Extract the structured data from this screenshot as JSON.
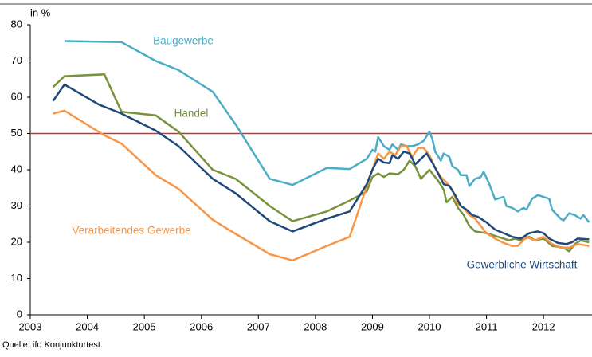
{
  "chart_data": {
    "type": "line",
    "y_label": "in %",
    "source": "Quelle: ifo Konjunkturtest.",
    "xlim": [
      2003,
      2012.85
    ],
    "xticks": [
      2003,
      2004,
      2005,
      2006,
      2007,
      2008,
      2009,
      2010,
      2011,
      2012
    ],
    "ylim": [
      0,
      80
    ],
    "yticks": [
      0,
      10,
      20,
      30,
      40,
      50,
      60,
      70,
      80
    ],
    "reference_line": {
      "value": 50,
      "color": "#e3262b"
    },
    "series": [
      {
        "name": "Baugewerbe",
        "color": "#4bacc6",
        "x": [
          2003.6,
          2004.6,
          2005.2,
          2005.6,
          2006.2,
          2006.6,
          2007.2,
          2007.6,
          2008.2,
          2008.6,
          2008.9,
          2009.0,
          2009.05,
          2009.1,
          2009.2,
          2009.3,
          2009.35,
          2009.45,
          2009.5,
          2009.6,
          2009.7,
          2009.8,
          2009.9,
          2010.0,
          2010.05,
          2010.1,
          2010.2,
          2010.25,
          2010.35,
          2010.4,
          2010.5,
          2010.55,
          2010.65,
          2010.7,
          2010.8,
          2010.9,
          2010.95,
          2011.05,
          2011.15,
          2011.3,
          2011.35,
          2011.45,
          2011.55,
          2011.65,
          2011.7,
          2011.8,
          2011.9,
          2012.0,
          2012.1,
          2012.15,
          2012.3,
          2012.35,
          2012.45,
          2012.55,
          2012.65,
          2012.7,
          2012.8
        ],
        "values": [
          75.5,
          75.2,
          70,
          67.5,
          61.5,
          52.5,
          37.5,
          35.8,
          40.5,
          40.2,
          43,
          45.5,
          45,
          49,
          46.5,
          45.5,
          47,
          45.5,
          47,
          46.5,
          46.5,
          47,
          48,
          50.5,
          48.5,
          45,
          42.5,
          44.5,
          43.5,
          41,
          40,
          38.5,
          38.5,
          35.5,
          37.5,
          38,
          39.5,
          36,
          31.8,
          32.5,
          30,
          29.5,
          28.5,
          29.5,
          29,
          32,
          33,
          32.5,
          32,
          29,
          26.5,
          26,
          28,
          27.5,
          26.5,
          27.5,
          25.5
        ]
      },
      {
        "name": "Handel",
        "color": "#77933c",
        "x": [
          2003.4,
          2003.6,
          2004.3,
          2004.6,
          2005.2,
          2005.6,
          2006.2,
          2006.6,
          2007.2,
          2007.6,
          2008.2,
          2008.6,
          2008.9,
          2009.0,
          2009.1,
          2009.2,
          2009.3,
          2009.45,
          2009.55,
          2009.65,
          2009.75,
          2009.85,
          2010.0,
          2010.15,
          2010.25,
          2010.3,
          2010.4,
          2010.5,
          2010.6,
          2010.7,
          2010.8,
          2011.0,
          2011.2,
          2011.4,
          2011.5,
          2011.6,
          2011.75,
          2011.85,
          2012.0,
          2012.15,
          2012.35,
          2012.45,
          2012.55,
          2012.65,
          2012.8
        ],
        "values": [
          62.8,
          65.8,
          66.3,
          56,
          55,
          50.5,
          40,
          37.5,
          30,
          25.8,
          28.5,
          31.5,
          34,
          38,
          39,
          38,
          39,
          38.8,
          40,
          42.5,
          41,
          37.5,
          40,
          37,
          34.5,
          31,
          32.5,
          29.5,
          27.5,
          24.5,
          23,
          22.5,
          21.5,
          20.5,
          21,
          20.5,
          21.5,
          20.5,
          21,
          19,
          18.5,
          17.5,
          19.5,
          20.5,
          20
        ]
      },
      {
        "name": "Verarbeitendes Gewerbe",
        "color": "#f79646",
        "x": [
          2003.4,
          2003.6,
          2004.3,
          2004.6,
          2005.2,
          2005.6,
          2006.2,
          2006.6,
          2007.2,
          2007.6,
          2008.2,
          2008.6,
          2009.0,
          2009.1,
          2009.2,
          2009.3,
          2009.4,
          2009.5,
          2009.6,
          2009.7,
          2009.8,
          2009.9,
          2010.0,
          2010.1,
          2010.2,
          2010.3,
          2010.4,
          2010.5,
          2010.6,
          2010.7,
          2010.8,
          2010.9,
          2011.0,
          2011.15,
          2011.3,
          2011.45,
          2011.55,
          2011.7,
          2011.85,
          2012.0,
          2012.15,
          2012.3,
          2012.45,
          2012.6,
          2012.8
        ],
        "values": [
          55.5,
          56.3,
          49.5,
          47.2,
          38.5,
          34.7,
          26.2,
          22.3,
          16.7,
          15,
          19,
          21.5,
          40,
          44.5,
          43,
          45,
          44,
          46.5,
          46.5,
          43.5,
          46,
          46,
          44,
          40.5,
          38,
          36.5,
          34.5,
          30.5,
          29.5,
          27.5,
          26.5,
          24.5,
          22.5,
          21,
          19.8,
          19,
          19,
          21.5,
          20.5,
          21.5,
          19.5,
          18.5,
          18.5,
          19.5,
          19
        ]
      },
      {
        "name": "Gewerbliche Wirtschaft",
        "color": "#1f497d",
        "x": [
          2003.4,
          2003.6,
          2004.2,
          2004.6,
          2005.2,
          2005.6,
          2006.2,
          2006.6,
          2007.2,
          2007.6,
          2008.2,
          2008.6,
          2008.9,
          2009.0,
          2009.1,
          2009.2,
          2009.3,
          2009.35,
          2009.45,
          2009.55,
          2009.65,
          2009.75,
          2009.85,
          2009.95,
          2010.05,
          2010.15,
          2010.25,
          2010.35,
          2010.45,
          2010.55,
          2010.65,
          2010.75,
          2010.85,
          2011.0,
          2011.15,
          2011.3,
          2011.45,
          2011.6,
          2011.75,
          2011.9,
          2012.0,
          2012.1,
          2012.25,
          2012.4,
          2012.5,
          2012.6,
          2012.8
        ],
        "values": [
          59,
          63.5,
          58,
          55.5,
          50.8,
          46.5,
          37.5,
          33.5,
          25.8,
          23,
          26.5,
          28.5,
          36,
          40,
          43,
          42,
          41.8,
          44,
          43,
          45,
          44.5,
          41.5,
          43,
          44.5,
          42,
          39,
          36,
          35.5,
          33,
          30,
          29,
          27.5,
          27,
          25.5,
          23.5,
          22.5,
          21.5,
          21,
          22.5,
          23,
          22.5,
          21,
          19.8,
          19.5,
          20,
          21,
          20.8
        ]
      }
    ]
  }
}
